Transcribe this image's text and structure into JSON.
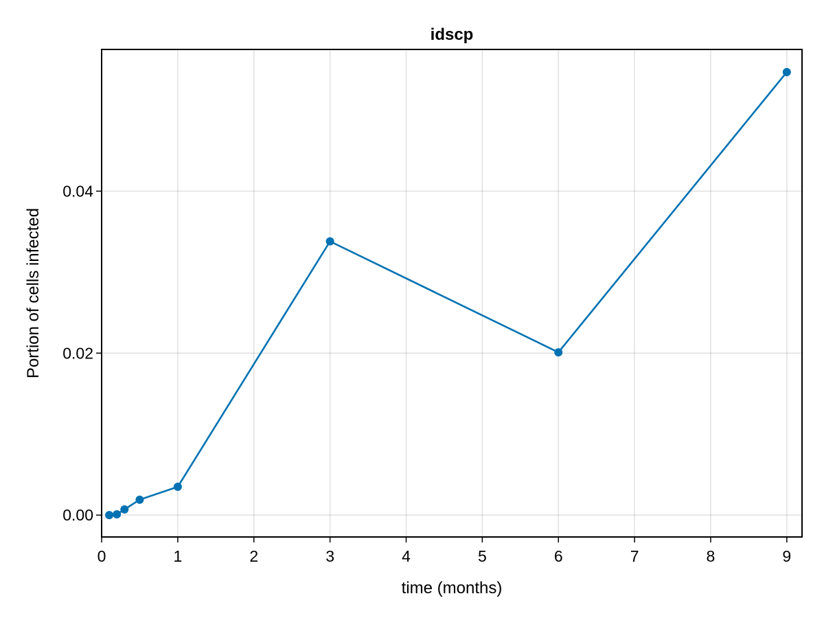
{
  "chart_data": {
    "type": "line",
    "title": "idscp",
    "xlabel": "time (months)",
    "ylabel": "Portion of cells infected",
    "xlim": [
      0,
      9.2
    ],
    "ylim": [
      -0.0027,
      0.0575
    ],
    "x_ticks": [
      0,
      1,
      2,
      3,
      4,
      5,
      6,
      7,
      8,
      9
    ],
    "x_tick_labels": [
      "0",
      "1",
      "2",
      "3",
      "4",
      "5",
      "6",
      "7",
      "8",
      "9"
    ],
    "y_ticks": [
      0.0,
      0.02,
      0.04
    ],
    "y_tick_labels": [
      "0.00",
      "0.02",
      "0.04"
    ],
    "grid": true,
    "series": [
      {
        "color": "#0072b2",
        "markers": true,
        "x": [
          0.1,
          0.2,
          0.3,
          0.5,
          1,
          3,
          6,
          9
        ],
        "y": [
          0.0,
          0.0001,
          0.0007,
          0.0019,
          0.0035,
          0.0338,
          0.0201,
          0.0547
        ]
      }
    ]
  }
}
